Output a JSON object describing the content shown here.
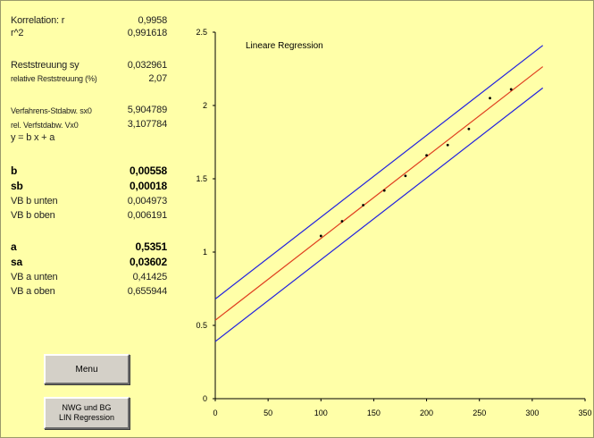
{
  "stats": {
    "korrelation": {
      "label": "Korrelation: r",
      "value": "0,9958"
    },
    "r2": {
      "label": "r^2",
      "value": "0,991618"
    },
    "reststreuung": {
      "label": "Reststreuung sy",
      "value": "0,032961"
    },
    "rel_reststreuung": {
      "label": "relative Reststreuung (%)",
      "value": "2,07"
    },
    "verfahrens_stdabw": {
      "label": "Verfahrens-Stdabw. sx0",
      "value": "5,904789"
    },
    "rel_verfstdabw": {
      "label": "rel. Verfstdabw. Vx0",
      "value": "3,107784"
    },
    "equation": "y = b x + a",
    "b": {
      "label": "b",
      "value": "0,00558"
    },
    "sb": {
      "label": "sb",
      "value": "0,00018"
    },
    "vb_b_unten": {
      "label": "VB b unten",
      "value": "0,004973"
    },
    "vb_b_oben": {
      "label": "VB b oben",
      "value": "0,006191"
    },
    "a": {
      "label": "a",
      "value": "0,5351"
    },
    "sa": {
      "label": "sa",
      "value": "0,03602"
    },
    "vb_a_unten": {
      "label": "VB a unten",
      "value": "0,41425"
    },
    "vb_a_oben": {
      "label": "VB a oben",
      "value": "0,655944"
    }
  },
  "buttons": {
    "menu": "Menu",
    "nwg_line1": "NWG und BG",
    "nwg_line2": "LIN Regression"
  },
  "chart_data": {
    "type": "scatter",
    "title": "Lineare Regression",
    "xlim": [
      0,
      350
    ],
    "ylim": [
      0,
      2.5
    ],
    "x_ticks": [
      0,
      50,
      100,
      150,
      200,
      250,
      300,
      350
    ],
    "y_ticks": [
      0,
      0.5,
      1,
      1.5,
      2,
      2.5
    ],
    "x_tick_labels": [
      "0",
      "50",
      "100",
      "150",
      "200",
      "250",
      "300",
      "350"
    ],
    "y_tick_labels": [
      "0",
      "0.5",
      "1",
      "1.5",
      "2",
      "2.5"
    ],
    "grid": false,
    "points": [
      {
        "x": 100,
        "y": 1.11
      },
      {
        "x": 120,
        "y": 1.21
      },
      {
        "x": 140,
        "y": 1.32
      },
      {
        "x": 160,
        "y": 1.42
      },
      {
        "x": 180,
        "y": 1.52
      },
      {
        "x": 200,
        "y": 1.66
      },
      {
        "x": 220,
        "y": 1.73
      },
      {
        "x": 240,
        "y": 1.84
      },
      {
        "x": 260,
        "y": 2.05
      },
      {
        "x": 280,
        "y": 2.11
      }
    ],
    "regression_line": {
      "slope": 0.00558,
      "intercept": 0.5351,
      "x_range": [
        0,
        310
      ],
      "color": "#e04020"
    },
    "upper_band": {
      "slope": 0.00558,
      "intercept": 0.68,
      "x_range": [
        0,
        310
      ],
      "color": "#2020e0"
    },
    "lower_band": {
      "slope": 0.00558,
      "intercept": 0.39,
      "x_range": [
        0,
        310
      ],
      "color": "#2020e0"
    }
  }
}
